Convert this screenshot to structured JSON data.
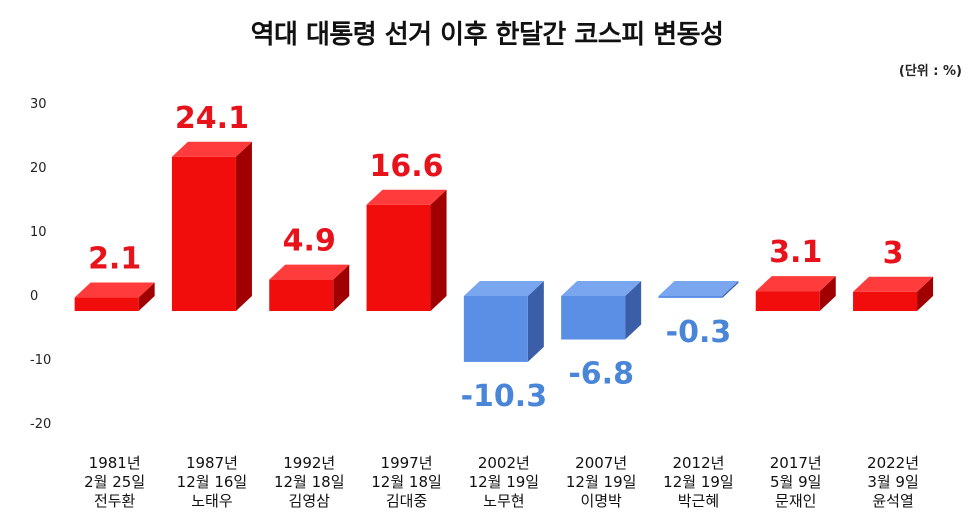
{
  "chart_data": {
    "type": "bar",
    "title": "역대 대통령 선거 이후 한달간 코스피 변동성",
    "unit_note": "(단위 : %)",
    "ylim": [
      -20,
      30
    ],
    "yticks": [
      30,
      20,
      10,
      0,
      -10,
      -20
    ],
    "categories": [
      [
        "1981년",
        "2월 25일",
        "전두환"
      ],
      [
        "1987년",
        "12월 16일",
        "노태우"
      ],
      [
        "1992년",
        "12월 18일",
        "김영삼"
      ],
      [
        "1997년",
        "12월 18일",
        "김대중"
      ],
      [
        "2002년",
        "12월 19일",
        "노무현"
      ],
      [
        "2007년",
        "12월 19일",
        "이명박"
      ],
      [
        "2012년",
        "12월 19일",
        "박근혜"
      ],
      [
        "2017년",
        "5월 9일",
        "문재인"
      ],
      [
        "2022년",
        "3월 9일",
        "윤석열"
      ]
    ],
    "values": [
      2.1,
      24.1,
      4.9,
      16.6,
      -10.3,
      -6.8,
      -0.3,
      3.1,
      3
    ],
    "data_labels": [
      "2.1",
      "24.1",
      "4.9",
      "16.6",
      "-10.3",
      "-6.8",
      "-0.3",
      "3.1",
      "3"
    ],
    "colors": {
      "positive_front": "#f20d0d",
      "positive_top": "#ff3b3b",
      "positive_side": "#a00000",
      "negative_front": "#5b8fe6",
      "negative_top": "#7aa6f0",
      "negative_side": "#3a5fa8",
      "positive_label": "#e8121b",
      "negative_label": "#4a86d8"
    },
    "grid": false,
    "legend": "none"
  }
}
